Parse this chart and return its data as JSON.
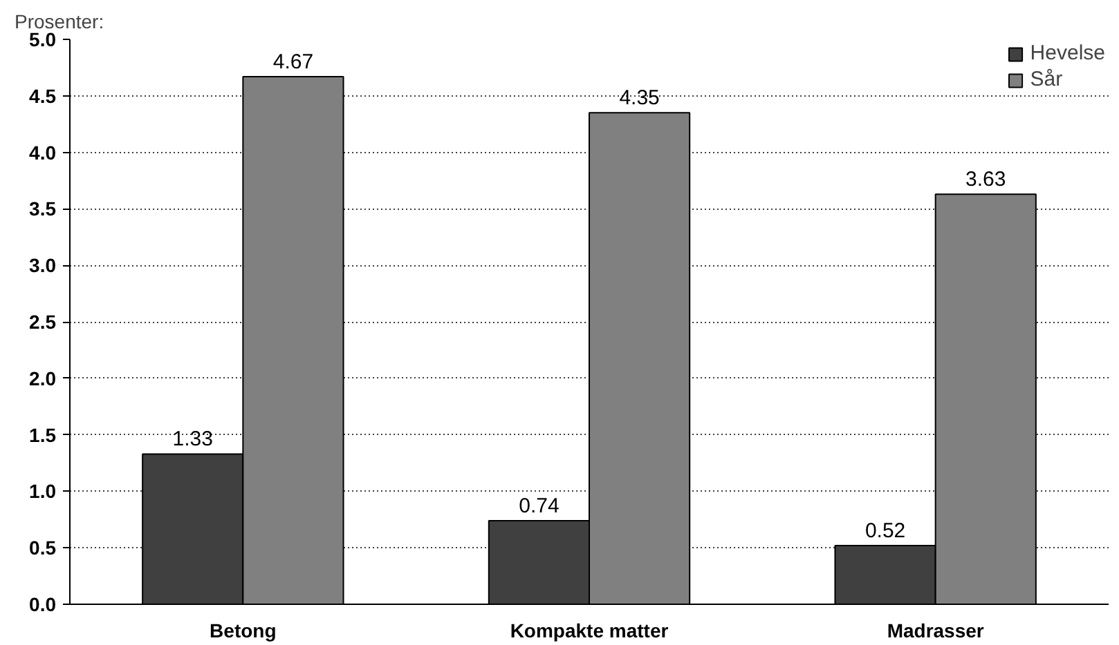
{
  "chart_data": {
    "type": "bar",
    "ylabel": "Prosenter:",
    "categories": [
      "Betong",
      "Kompakte matter",
      "Madrasser"
    ],
    "series": [
      {
        "name": "Hevelse",
        "color": "#404040",
        "values": [
          1.33,
          0.74,
          0.52
        ]
      },
      {
        "name": "Sår",
        "color": "#808080",
        "values": [
          4.67,
          4.35,
          3.63
        ]
      }
    ],
    "ylim": [
      0,
      5
    ],
    "yticks": [
      {
        "value": 0,
        "label": "0.0"
      },
      {
        "value": 0.5,
        "label": "0.5"
      },
      {
        "value": 1,
        "label": "1.0"
      },
      {
        "value": 1.5,
        "label": "1.5"
      },
      {
        "value": 2,
        "label": "2.0"
      },
      {
        "value": 2.5,
        "label": "2.5"
      },
      {
        "value": 3,
        "label": "3.0"
      },
      {
        "value": 3.5,
        "label": "3.5"
      },
      {
        "value": 4,
        "label": "4.0"
      },
      {
        "value": 4.5,
        "label": "4.5"
      },
      {
        "value": 5,
        "label": "5.0"
      }
    ],
    "grid": "y",
    "legend": "top right",
    "data_labels": true
  }
}
